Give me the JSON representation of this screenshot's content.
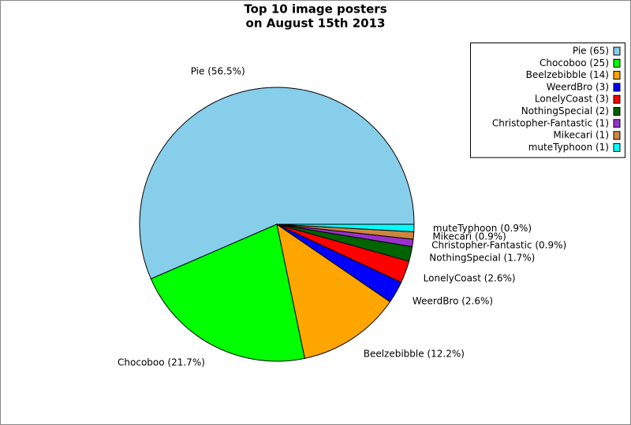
{
  "chart_data": {
    "type": "pie",
    "title": [
      "Top 10 image posters",
      "on August 15th 2013"
    ],
    "values": [
      65,
      25,
      14,
      3,
      3,
      2,
      1,
      1,
      1
    ],
    "legend_labels": [
      "Pie (65)",
      "Chocoboo (25)",
      "Beelzebibble (14)",
      "WeerdBro (3)",
      "LonelyCoast (3)",
      "NothingSpecial (2)",
      "Christopher-Fantastic (1)",
      "Mikecari (1)",
      "muteTyphoon (1)"
    ],
    "slice_labels": [
      "Pie (56.5%)",
      "Chocoboo (21.7%)",
      "Beelzebibble (12.2%)",
      "WeerdBro (2.6%)",
      "LonelyCoast (2.6%)",
      "NothingSpecial (1.7%)",
      "Christopher-Fantastic (0.9%)",
      "Mikecari (0.9%)",
      "muteTyphoon (0.9%)"
    ],
    "colors": [
      "#87ceeb",
      "#00ff00",
      "#ffa500",
      "#0000ff",
      "#ff0000",
      "#006400",
      "#9932cc",
      "#cd853f",
      "#00ffff"
    ],
    "legend": "upper right"
  }
}
